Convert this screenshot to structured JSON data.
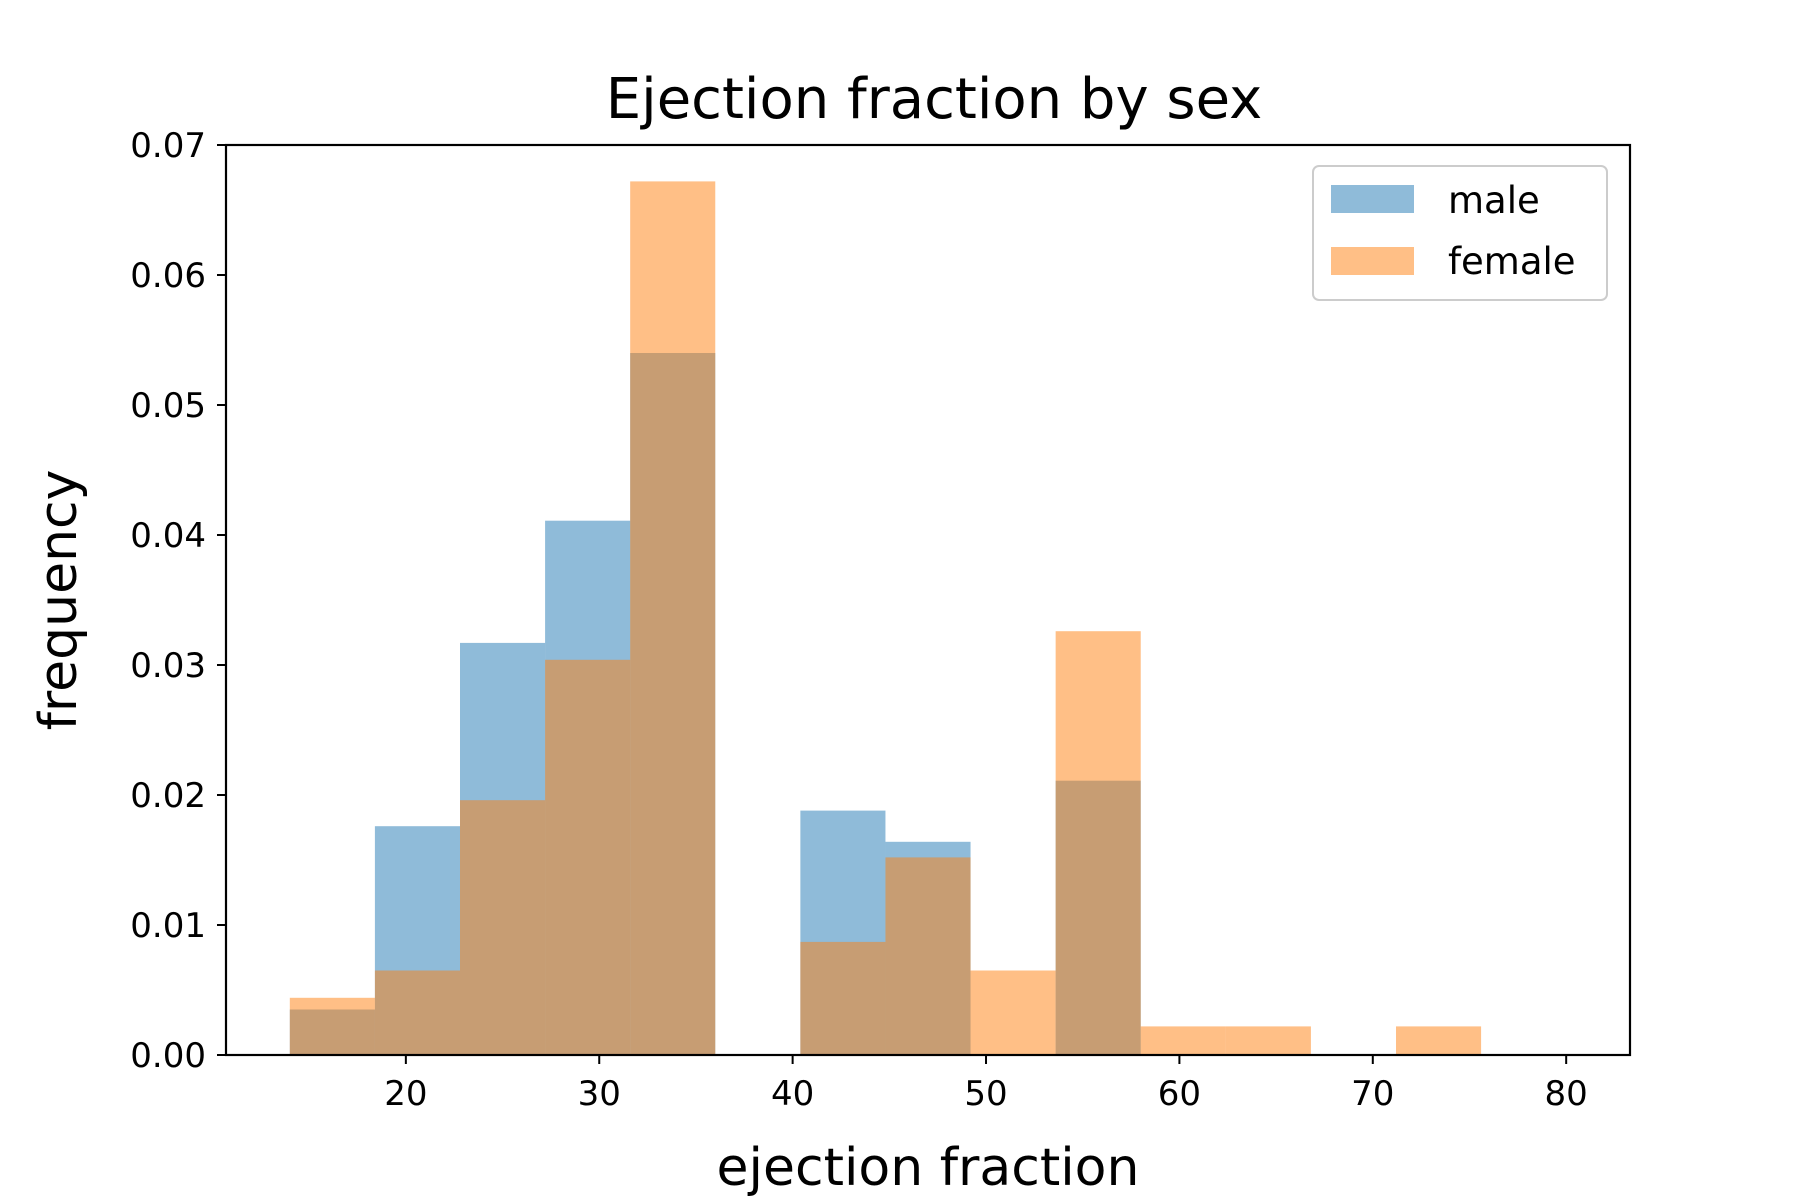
{
  "chart_data": {
    "type": "histogram",
    "title": "Ejection fraction by sex",
    "xlabel": "ejection fraction",
    "ylabel": "frequency",
    "xlim": [
      10.7,
      83.3
    ],
    "ylim": [
      0,
      0.07
    ],
    "xticks": [
      20,
      30,
      40,
      50,
      60,
      70,
      80
    ],
    "yticks": [
      0.0,
      0.01,
      0.02,
      0.03,
      0.04,
      0.05,
      0.06,
      0.07
    ],
    "xtick_labels": [
      "20",
      "30",
      "40",
      "50",
      "60",
      "70",
      "80"
    ],
    "ytick_labels": [
      "0.00",
      "0.01",
      "0.02",
      "0.03",
      "0.04",
      "0.05",
      "0.06",
      "0.07"
    ],
    "bin_edges": [
      14,
      18.4,
      22.8,
      27.2,
      31.6,
      36.0,
      40.4,
      44.8,
      49.2,
      53.6,
      58.0,
      62.4,
      66.8,
      71.2,
      75.6,
      80.0
    ],
    "series": [
      {
        "name": "male",
        "color": "#1f77b4",
        "alpha": 0.5,
        "values": [
          0.0035,
          0.0176,
          0.0317,
          0.0411,
          0.054,
          0.0,
          0.0188,
          0.0164,
          0.0,
          0.0211,
          0.0,
          0.0,
          0.0,
          0.0,
          0.0
        ]
      },
      {
        "name": "female",
        "color": "#ff7f0e",
        "alpha": 0.5,
        "values": [
          0.0044,
          0.0065,
          0.0196,
          0.0304,
          0.0672,
          0.0,
          0.0087,
          0.0152,
          0.0065,
          0.0326,
          0.0022,
          0.0022,
          0.0,
          0.0022,
          0.0
        ]
      }
    ],
    "legend": {
      "position": "top-right",
      "entries": [
        "male",
        "female"
      ]
    },
    "grid": false
  }
}
